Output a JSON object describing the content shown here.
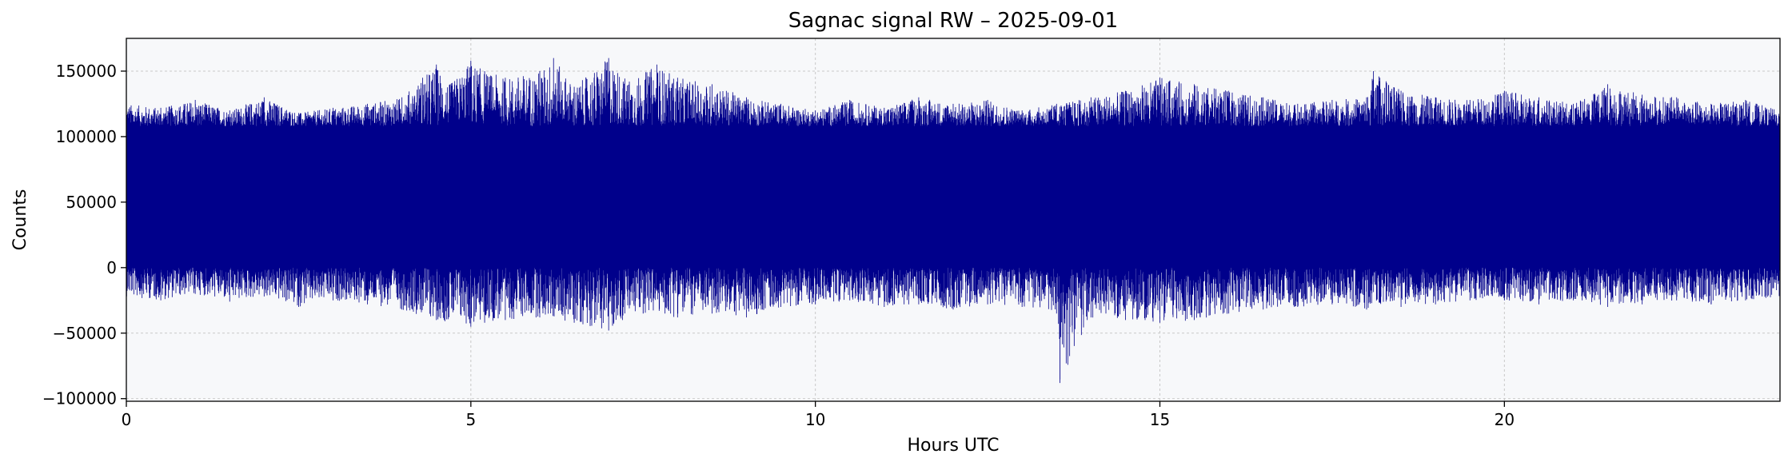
{
  "chart_data": {
    "type": "line",
    "title": "Sagnac signal RW – 2025-09-01",
    "xlabel": "Hours UTC",
    "ylabel": "Counts",
    "xlim": [
      0,
      24
    ],
    "ylim": [
      -102000,
      175000
    ],
    "xticks": [
      0,
      5,
      10,
      15,
      20
    ],
    "xtick_labels": [
      "0",
      "5",
      "10",
      "15",
      "20"
    ],
    "yticks": [
      -100000,
      -50000,
      0,
      50000,
      100000,
      150000
    ],
    "ytick_labels": [
      "−100000",
      "−50000",
      "0",
      "50000",
      "100000",
      "150000"
    ],
    "grid": true,
    "legend": "none",
    "colors": {
      "line": "#00008b",
      "background": "#f7f8fa",
      "grid": "#c8c8c8"
    },
    "series": [
      {
        "upper_envelope": {
          "x": [
            0,
            0.5,
            1,
            1.5,
            2,
            2.5,
            3,
            3.5,
            4,
            4.3,
            4.5,
            4.7,
            5,
            5.2,
            5.5,
            6,
            6.2,
            6.5,
            7,
            7.3,
            7.7,
            8,
            8.5,
            9,
            9.5,
            10,
            10.5,
            11,
            11.5,
            12,
            12.5,
            13,
            13.5,
            14,
            14.5,
            15,
            15.5,
            16,
            16.5,
            17,
            17.5,
            18,
            18.1,
            18.5,
            19,
            19.5,
            20,
            20.5,
            21,
            21.5,
            22,
            22.5,
            23,
            23.5,
            24
          ],
          "y": [
            125000,
            122000,
            128000,
            120000,
            130000,
            118000,
            122000,
            125000,
            130000,
            145000,
            155000,
            140000,
            158000,
            150000,
            145000,
            150000,
            160000,
            138000,
            160000,
            142000,
            155000,
            145000,
            140000,
            130000,
            125000,
            120000,
            128000,
            122000,
            130000,
            125000,
            128000,
            120000,
            125000,
            130000,
            135000,
            145000,
            140000,
            135000,
            130000,
            125000,
            128000,
            130000,
            150000,
            135000,
            130000,
            128000,
            135000,
            130000,
            125000,
            140000,
            132000,
            130000,
            125000,
            128000,
            120000
          ]
        },
        "lower_envelope": {
          "x": [
            0,
            0.5,
            1,
            1.5,
            2,
            2.5,
            3,
            3.5,
            4,
            4.5,
            5,
            5.2,
            5.5,
            6,
            6.5,
            7,
            7.2,
            7.5,
            8,
            8.5,
            9,
            9.5,
            10,
            10.5,
            11,
            11.5,
            12,
            12.5,
            13,
            13.5,
            13.55,
            14,
            14.5,
            15,
            15.5,
            16,
            16.5,
            17,
            17.5,
            18,
            18.5,
            19,
            19.5,
            20,
            20.5,
            21,
            21.5,
            22,
            22.5,
            23,
            23.5,
            24
          ],
          "y": [
            -22000,
            -25000,
            -20000,
            -26000,
            -22000,
            -30000,
            -25000,
            -28000,
            -32000,
            -40000,
            -45000,
            -42000,
            -40000,
            -38000,
            -42000,
            -48000,
            -40000,
            -35000,
            -38000,
            -35000,
            -38000,
            -30000,
            -28000,
            -25000,
            -30000,
            -28000,
            -32000,
            -28000,
            -30000,
            -35000,
            -88000,
            -38000,
            -40000,
            -42000,
            -40000,
            -35000,
            -32000,
            -30000,
            -28000,
            -32000,
            -30000,
            -28000,
            -25000,
            -25000,
            -28000,
            -25000,
            -30000,
            -28000,
            -25000,
            -28000,
            -25000,
            -22000
          ]
        },
        "core_band": [
          0,
          108000
        ]
      }
    ]
  }
}
